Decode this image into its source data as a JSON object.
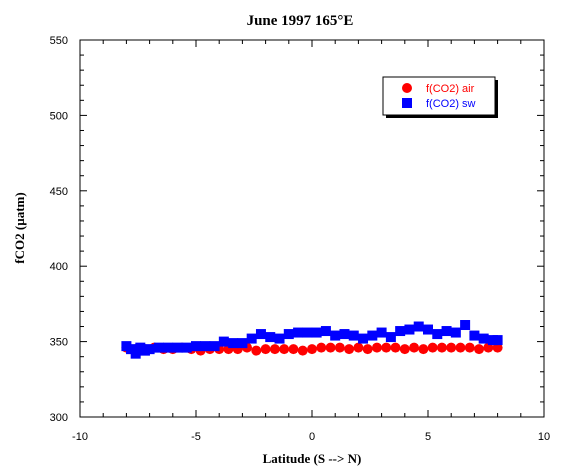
{
  "chart_data": {
    "type": "scatter",
    "title": "June 1997 165°E",
    "xlabel": "Latitude (S --> N)",
    "ylabel": "fCO2 (µatm)",
    "xlim": [
      -10,
      10
    ],
    "ylim": [
      300,
      550
    ],
    "xticks": [
      -10,
      -5,
      0,
      5,
      10
    ],
    "yticks": [
      300,
      350,
      400,
      450,
      500,
      550
    ],
    "grid": false,
    "legend_position": "top-right",
    "series": [
      {
        "name": "f(CO2) air",
        "marker": "circle",
        "color": "#ff0000",
        "x": [
          -8.0,
          -7.6,
          -7.2,
          -6.8,
          -6.4,
          -6.0,
          -5.6,
          -5.2,
          -4.8,
          -4.4,
          -4.0,
          -3.6,
          -3.2,
          -2.8,
          -2.4,
          -2.0,
          -1.6,
          -1.2,
          -0.8,
          -0.4,
          0.0,
          0.4,
          0.8,
          1.2,
          1.6,
          2.0,
          2.4,
          2.8,
          3.2,
          3.6,
          4.0,
          4.4,
          4.8,
          5.2,
          5.6,
          6.0,
          6.4,
          6.8,
          7.2,
          7.6,
          8.0
        ],
        "y": [
          346,
          345,
          345,
          346,
          345,
          345,
          346,
          345,
          344,
          345,
          345,
          345,
          345,
          346,
          344,
          345,
          345,
          345,
          345,
          344,
          345,
          346,
          346,
          346,
          345,
          346,
          345,
          346,
          346,
          346,
          345,
          346,
          345,
          346,
          346,
          346,
          346,
          346,
          345,
          346,
          346
        ]
      },
      {
        "name": "f(CO2) sw",
        "marker": "square",
        "color": "#0000ff",
        "x": [
          -8.0,
          -7.8,
          -7.6,
          -7.4,
          -7.2,
          -7.0,
          -6.6,
          -6.2,
          -5.8,
          -5.4,
          -5.0,
          -4.6,
          -4.2,
          -3.8,
          -3.4,
          -3.0,
          -2.6,
          -2.2,
          -1.8,
          -1.4,
          -1.0,
          -0.6,
          -0.2,
          0.2,
          0.6,
          1.0,
          1.4,
          1.8,
          2.2,
          2.6,
          3.0,
          3.4,
          3.8,
          4.2,
          4.6,
          5.0,
          5.4,
          5.8,
          6.2,
          6.6,
          7.0,
          7.4,
          7.8,
          8.0
        ],
        "y": [
          347,
          345,
          342,
          346,
          344,
          345,
          346,
          346,
          346,
          346,
          347,
          347,
          347,
          350,
          349,
          349,
          352,
          355,
          353,
          352,
          355,
          356,
          356,
          356,
          357,
          354,
          355,
          354,
          352,
          354,
          356,
          353,
          357,
          358,
          360,
          358,
          355,
          357,
          356,
          361,
          354,
          352,
          351,
          351
        ]
      }
    ]
  }
}
